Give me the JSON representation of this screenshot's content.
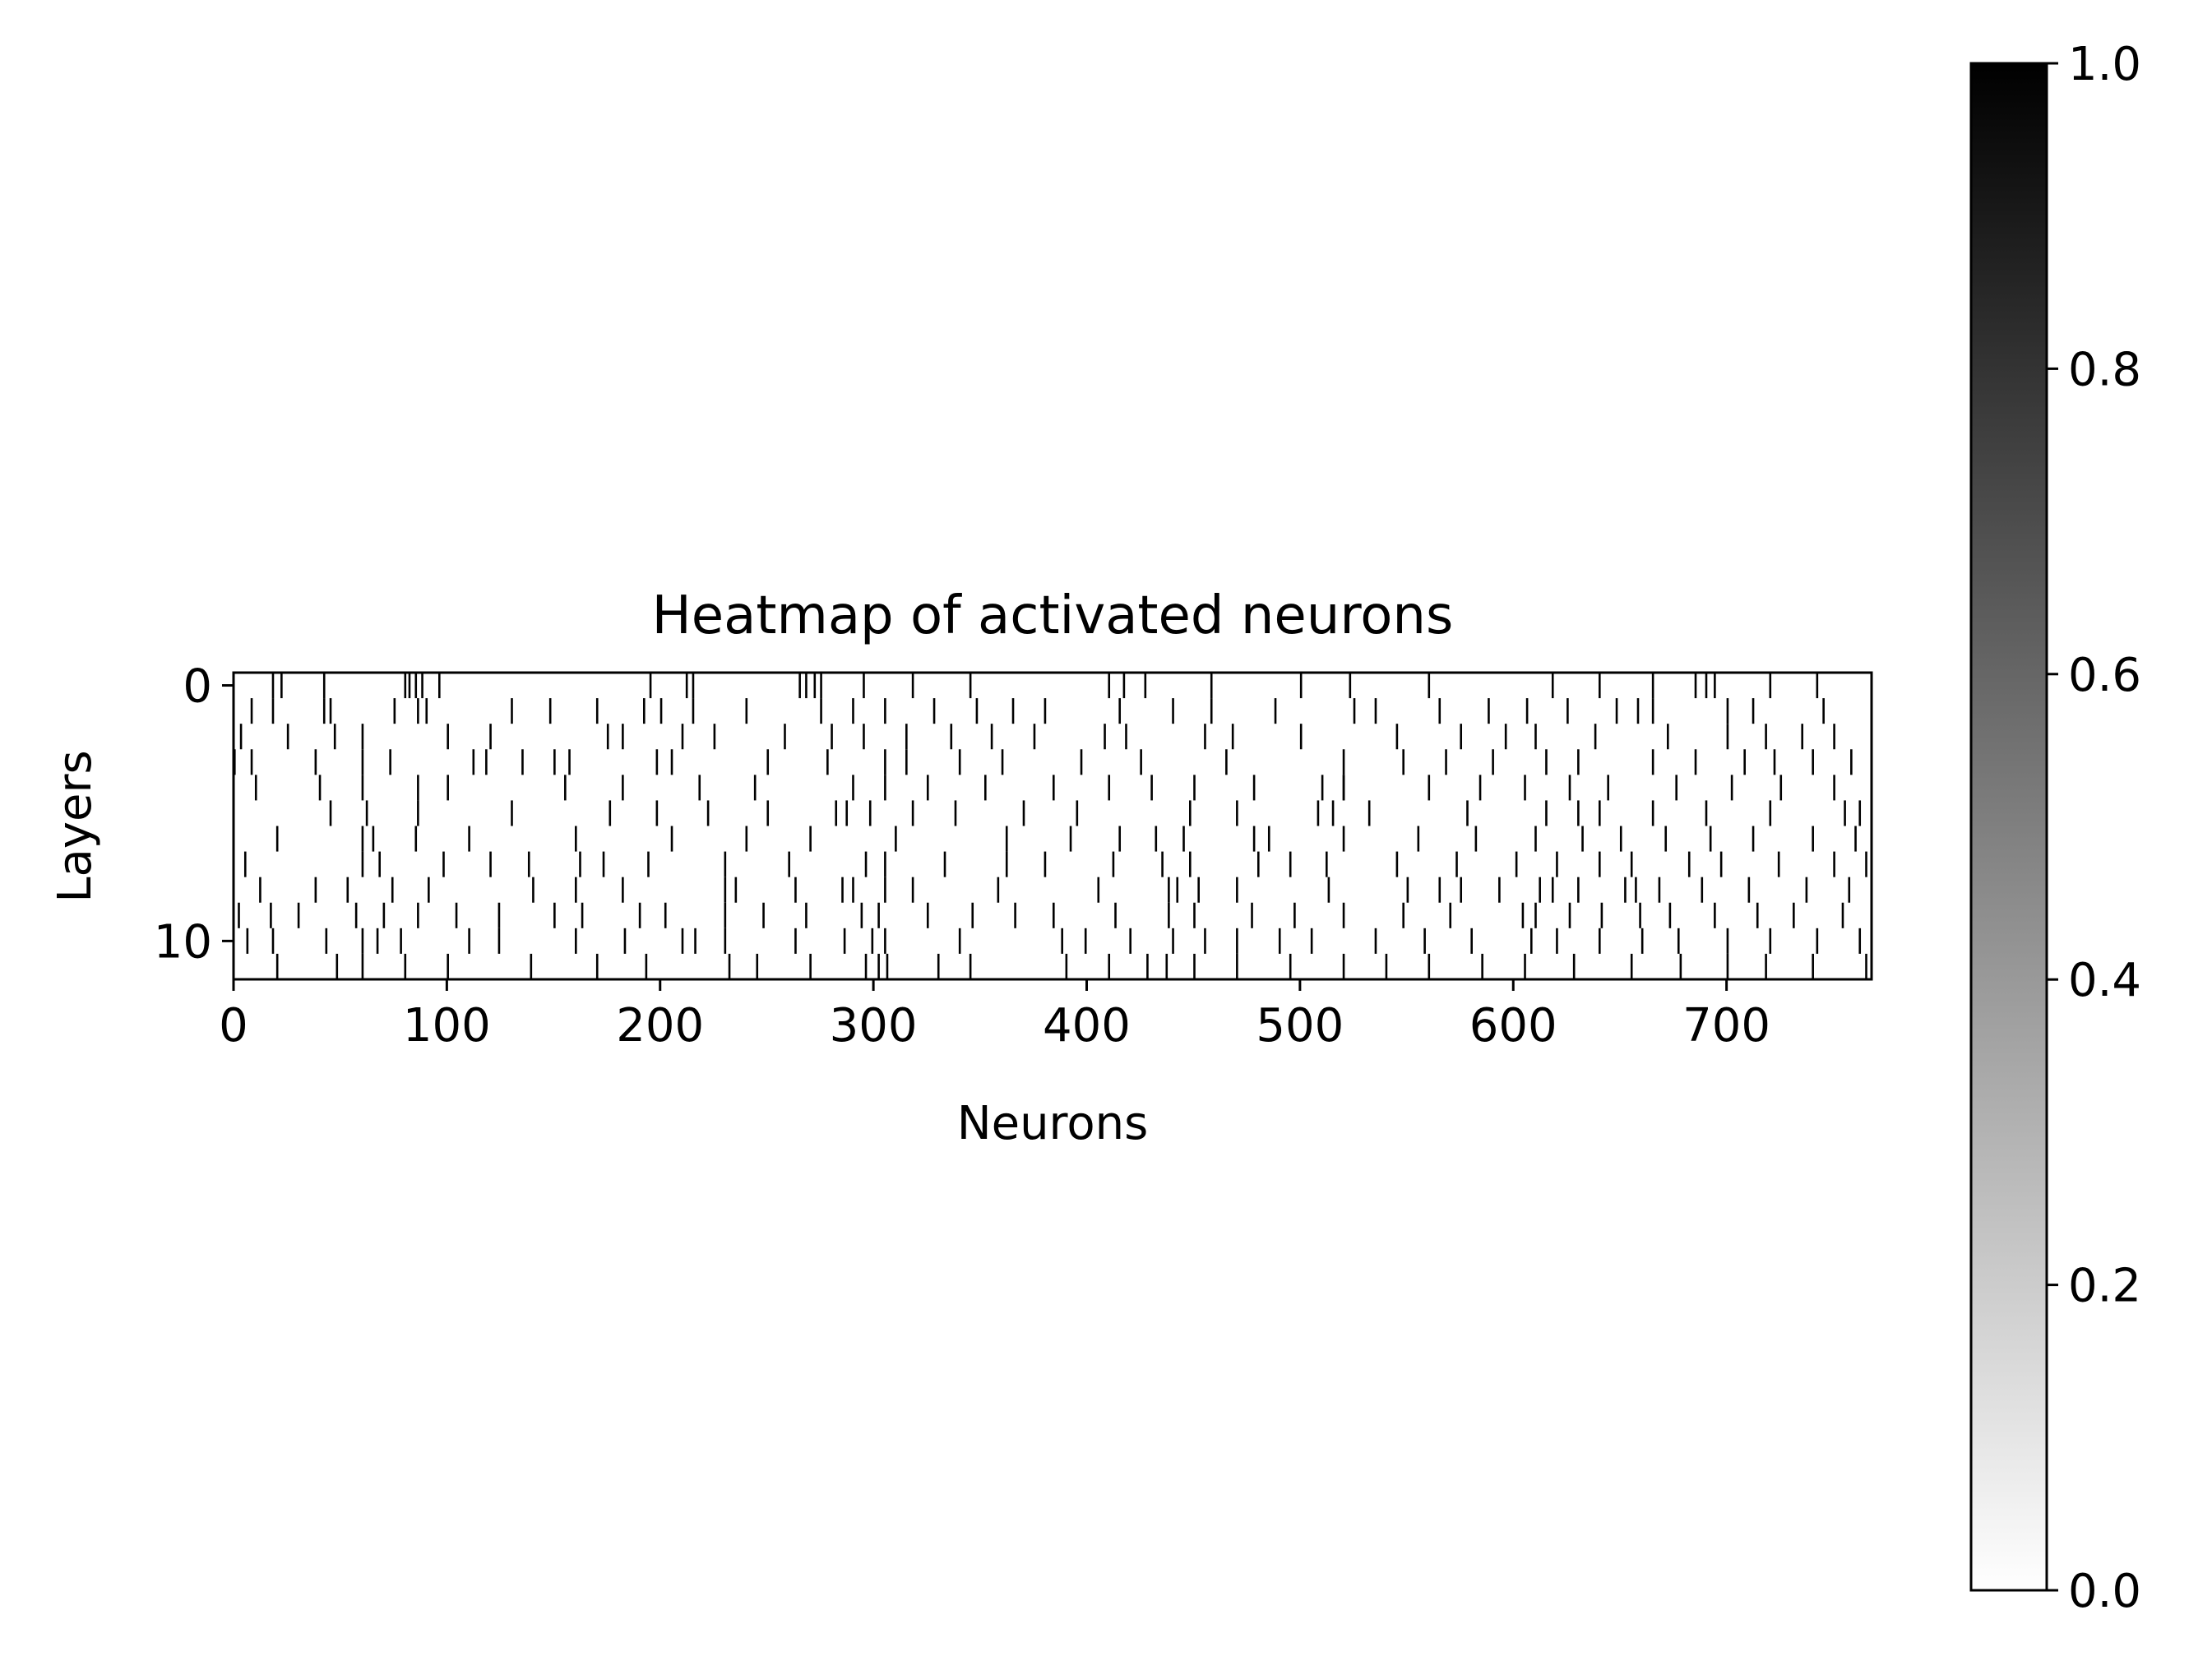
{
  "chart_data": {
    "type": "heatmap",
    "title": "Heatmap of activated neurons",
    "xlabel": "Neurons",
    "ylabel": "Layers",
    "colormap": "gray_r",
    "color_low": "#ffffff",
    "color_high": "#000000",
    "x_range": [
      0,
      768
    ],
    "y_range": [
      0,
      12
    ],
    "y_axis_inverted": true,
    "x_ticks": [
      0,
      100,
      200,
      300,
      400,
      500,
      600,
      700
    ],
    "x_tick_labels": [
      "0",
      "100",
      "200",
      "300",
      "400",
      "500",
      "600",
      "700"
    ],
    "y_ticks": [
      0,
      10
    ],
    "y_tick_labels": [
      "0",
      "10"
    ],
    "colorbar": {
      "range": [
        0.0,
        1.0
      ],
      "ticks": [
        0.0,
        0.2,
        0.4,
        0.6,
        0.8,
        1.0
      ],
      "tick_labels": [
        "0.0",
        "0.2",
        "0.4",
        "0.6",
        "0.8",
        "1.0"
      ]
    },
    "activated_cells": {
      "0": [
        18,
        22,
        42,
        80,
        82,
        85,
        88,
        96,
        195,
        212,
        215,
        265,
        268,
        272,
        275,
        295,
        318,
        345,
        410,
        417,
        427,
        458,
        500,
        523,
        560,
        618,
        640,
        665,
        685,
        690,
        694,
        720,
        742
      ],
      "1": [
        8,
        18,
        42,
        45,
        75,
        86,
        90,
        130,
        148,
        170,
        192,
        200,
        215,
        240,
        275,
        290,
        305,
        328,
        348,
        365,
        380,
        415,
        440,
        458,
        488,
        525,
        535,
        565,
        588,
        606,
        625,
        648,
        658,
        665,
        700,
        712,
        745
      ],
      "2": [
        3,
        25,
        47,
        60,
        100,
        120,
        175,
        182,
        210,
        225,
        258,
        280,
        295,
        315,
        336,
        355,
        375,
        408,
        418,
        455,
        468,
        500,
        545,
        575,
        596,
        610,
        638,
        672,
        700,
        718,
        735,
        750
      ],
      "3": [
        0,
        8,
        38,
        60,
        73,
        112,
        118,
        135,
        150,
        157,
        198,
        205,
        250,
        278,
        305,
        315,
        340,
        360,
        397,
        425,
        465,
        520,
        548,
        568,
        590,
        615,
        630,
        665,
        685,
        708,
        722,
        740,
        758
      ],
      "4": [
        10,
        40,
        60,
        86,
        100,
        155,
        182,
        218,
        244,
        290,
        305,
        325,
        352,
        384,
        410,
        430,
        450,
        478,
        510,
        520,
        520,
        560,
        584,
        605,
        626,
        644,
        676,
        702,
        725,
        750
      ],
      "5": [
        45,
        62,
        86,
        130,
        176,
        198,
        222,
        250,
        282,
        287,
        298,
        318,
        338,
        370,
        395,
        448,
        470,
        508,
        515,
        532,
        578,
        615,
        630,
        640,
        665,
        690,
        720,
        755,
        762
      ],
      "6": [
        20,
        60,
        65,
        85,
        110,
        160,
        205,
        240,
        270,
        310,
        362,
        392,
        415,
        432,
        445,
        478,
        485,
        520,
        555,
        582,
        610,
        632,
        650,
        671,
        692,
        712,
        740,
        760
      ],
      "7": [
        5,
        60,
        68,
        98,
        120,
        138,
        162,
        173,
        194,
        230,
        260,
        296,
        305,
        333,
        362,
        380,
        412,
        435,
        448,
        480,
        495,
        512,
        545,
        573,
        601,
        620,
        640,
        655,
        682,
        697,
        724,
        750,
        765
      ],
      "8": [
        12,
        38,
        53,
        74,
        91,
        140,
        160,
        182,
        230,
        235,
        263,
        285,
        290,
        305,
        318,
        358,
        405,
        438,
        442,
        452,
        470,
        513,
        550,
        565,
        575,
        593,
        612,
        618,
        630,
        652,
        657,
        668,
        688,
        710,
        737,
        757
      ],
      "9": [
        2,
        17,
        30,
        57,
        70,
        86,
        104,
        124,
        150,
        163,
        190,
        202,
        230,
        248,
        268,
        294,
        302,
        325,
        346,
        366,
        384,
        413,
        438,
        450,
        477,
        497,
        520,
        548,
        570,
        604,
        610,
        626,
        641,
        659,
        673,
        694,
        714,
        731,
        754
      ],
      "10": [
        6,
        18,
        43,
        60,
        67,
        78,
        110,
        124,
        160,
        183,
        210,
        216,
        230,
        263,
        286,
        299,
        305,
        340,
        388,
        399,
        420,
        440,
        455,
        470,
        490,
        505,
        535,
        558,
        580,
        608,
        620,
        640,
        660,
        677,
        700,
        720,
        742,
        762
      ],
      "11": [
        20,
        48,
        60,
        80,
        100,
        139,
        170,
        193,
        232,
        245,
        270,
        296,
        302,
        306,
        330,
        345,
        390,
        410,
        428,
        437,
        450,
        470,
        495,
        520,
        540,
        560,
        585,
        605,
        628,
        655,
        678,
        700,
        718,
        740,
        765
      ]
    }
  }
}
